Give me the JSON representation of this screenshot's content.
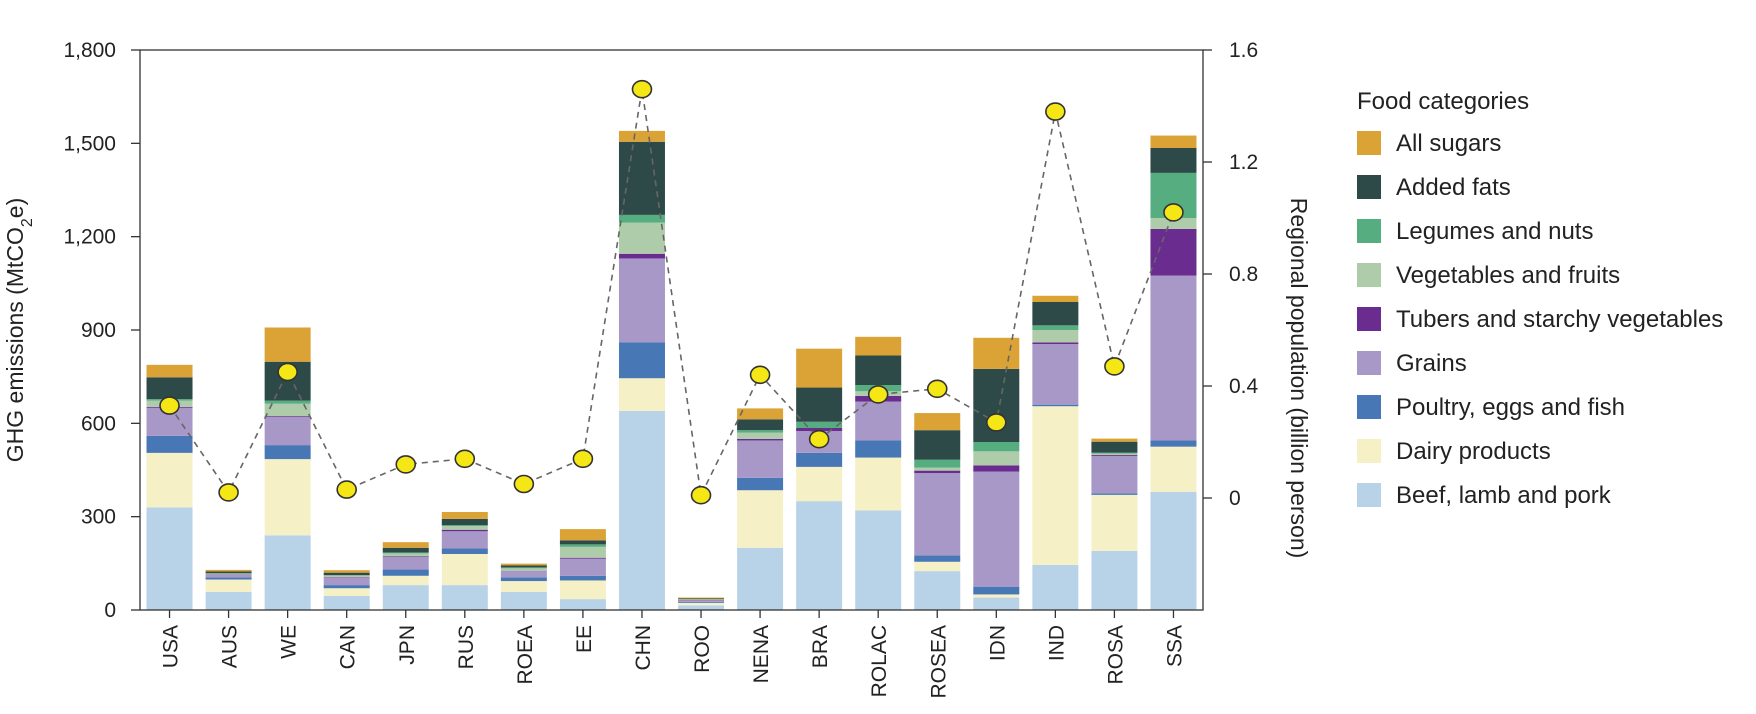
{
  "chart_data": {
    "type": "bar",
    "stacked": true,
    "categories": [
      "USA",
      "AUS",
      "WE",
      "CAN",
      "JPN",
      "RUS",
      "ROEA",
      "EE",
      "CHN",
      "ROO",
      "NENA",
      "BRA",
      "ROLAC",
      "ROSEA",
      "IDN",
      "IND",
      "ROSA",
      "SSA"
    ],
    "ylabel": "GHG emissions (MtCO2e)",
    "ylabel_parts": {
      "main": "GHG emissions (MtCO",
      "sub": "2",
      "tail": "e)"
    },
    "y2label": "Regional population (billion person)",
    "ylim": [
      0,
      1800
    ],
    "y2lim": [
      -0.4,
      1.6
    ],
    "y_ticks": [
      0,
      300,
      600,
      900,
      1200,
      1500,
      1800
    ],
    "y_tick_labels": [
      "0",
      "300",
      "600",
      "900",
      "1,200",
      "1,500",
      "1,800"
    ],
    "y2_ticks": [
      0,
      0.4,
      0.8,
      1.2,
      1.6
    ],
    "y2_tick_labels": [
      "0",
      "0.4",
      "0.8",
      "1.2",
      "1.6"
    ],
    "legend_title": "Food categories",
    "legend_position": "right",
    "series": [
      {
        "name": "Beef, lamb and pork",
        "color": "#b8d3e8",
        "values": [
          330,
          58,
          240,
          45,
          80,
          80,
          58,
          35,
          640,
          15,
          200,
          350,
          320,
          125,
          40,
          145,
          190,
          380
        ]
      },
      {
        "name": "Dairy products",
        "color": "#f6f0c6",
        "values": [
          175,
          40,
          245,
          25,
          30,
          100,
          35,
          60,
          105,
          8,
          185,
          110,
          170,
          30,
          10,
          510,
          180,
          145
        ]
      },
      {
        "name": "Poultry, eggs and fish",
        "color": "#4877b5",
        "values": [
          55,
          7,
          45,
          10,
          20,
          18,
          12,
          15,
          115,
          3,
          40,
          45,
          55,
          20,
          25,
          5,
          5,
          20
        ]
      },
      {
        "name": "Grains",
        "color": "#a898c8",
        "values": [
          90,
          8,
          90,
          25,
          40,
          55,
          20,
          55,
          270,
          5,
          120,
          70,
          125,
          265,
          370,
          195,
          120,
          530
        ]
      },
      {
        "name": "Tubers and starchy vegetables",
        "color": "#6a2d8f",
        "values": [
          3,
          1,
          3,
          1,
          2,
          5,
          1,
          3,
          15,
          1,
          5,
          10,
          18,
          8,
          20,
          5,
          3,
          150
        ]
      },
      {
        "name": "Vegetables and fruits",
        "color": "#aeccaa",
        "values": [
          20,
          3,
          40,
          5,
          10,
          12,
          8,
          35,
          100,
          2,
          20,
          0,
          15,
          10,
          45,
          40,
          5,
          35
        ]
      },
      {
        "name": "Legumes and nuts",
        "color": "#56ae80",
        "values": [
          5,
          1,
          10,
          1,
          3,
          3,
          3,
          8,
          25,
          1,
          8,
          20,
          20,
          25,
          30,
          15,
          3,
          145
        ]
      },
      {
        "name": "Added fats",
        "color": "#2e4a48",
        "values": [
          70,
          6,
          125,
          8,
          15,
          20,
          6,
          13,
          235,
          2,
          35,
          110,
          95,
          95,
          235,
          75,
          35,
          80
        ]
      },
      {
        "name": "All sugars",
        "color": "#dba236",
        "values": [
          40,
          5,
          110,
          8,
          18,
          22,
          6,
          36,
          35,
          3,
          35,
          125,
          60,
          55,
          100,
          20,
          10,
          40
        ]
      }
    ],
    "population": {
      "name": "Regional population",
      "axis": "right",
      "values": [
        0.33,
        0.02,
        0.45,
        0.03,
        0.12,
        0.14,
        0.05,
        0.14,
        1.46,
        0.01,
        0.44,
        0.21,
        0.37,
        0.39,
        0.27,
        1.38,
        0.47,
        1.02
      ]
    }
  }
}
